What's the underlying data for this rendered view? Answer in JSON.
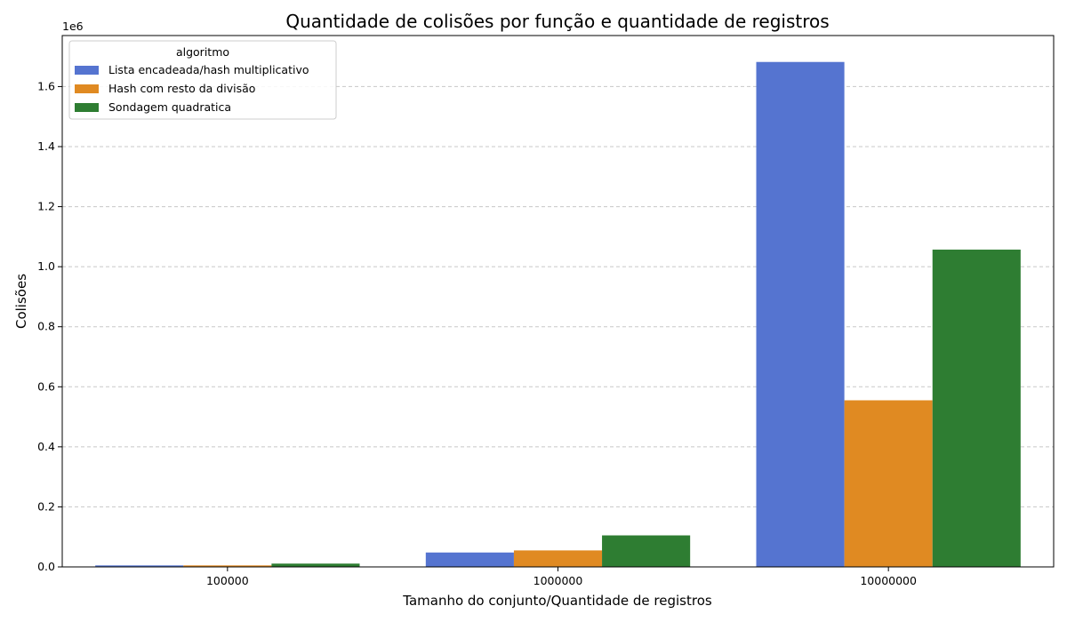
{
  "chart_data": {
    "type": "bar",
    "title": "Quantidade de colisões por função e quantidade de registros",
    "xlabel": "Tamanho do conjunto/Quantidade de registros",
    "ylabel": "Colisões",
    "y_offset_text": "1e6",
    "categories": [
      "100000",
      "1000000",
      "10000000"
    ],
    "ylim": [
      0,
      1.77
    ],
    "yticks": [
      "0.0",
      "0.2",
      "0.4",
      "0.6",
      "0.8",
      "1.0",
      "1.2",
      "1.4",
      "1.6"
    ],
    "grid": "y",
    "legend": {
      "title": "algoritmo",
      "placement": "top-left"
    },
    "series": [
      {
        "name": "Lista encadeada/hash multiplicativo",
        "color": "#5574d0",
        "values": [
          0.005,
          0.048,
          1.682
        ]
      },
      {
        "name": "Hash com resto da divisão",
        "color": "#e08a22",
        "values": [
          0.005,
          0.055,
          0.555
        ]
      },
      {
        "name": "Sondagem quadratica",
        "color": "#2e7d32",
        "values": [
          0.011,
          0.105,
          1.057
        ]
      }
    ]
  }
}
